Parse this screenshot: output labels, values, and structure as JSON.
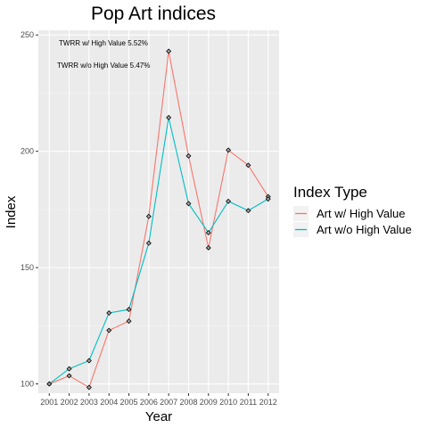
{
  "chart_data": {
    "type": "line",
    "title": "Pop Art indices",
    "xlabel": "Year",
    "ylabel": "Index",
    "x": [
      2001,
      2002,
      2003,
      2004,
      2005,
      2006,
      2007,
      2008,
      2009,
      2010,
      2011,
      2012
    ],
    "x_ticks": [
      "2001",
      "2002",
      "2003",
      "2004",
      "2005",
      "2006",
      "2007",
      "2008",
      "2009",
      "2010",
      "2011",
      "2012"
    ],
    "ylim": [
      96,
      252
    ],
    "y_ticks": [
      100,
      150,
      200,
      250
    ],
    "y_tick_labels": [
      "100",
      "150",
      "200",
      "250"
    ],
    "grid": true,
    "legend": {
      "title": "Index Type",
      "position": "right"
    },
    "annotations": [
      "TWRR w/ High Value 5.52%",
      "TWRR w/o High Value 5.47%"
    ],
    "series": [
      {
        "name": "Art w/ High Value",
        "color": "#F8766D",
        "values": [
          100,
          103.5,
          98.5,
          123,
          127,
          172,
          243,
          198,
          158.5,
          200.5,
          194,
          180.5
        ]
      },
      {
        "name": "Art w/o High Value",
        "color": "#00BFC4",
        "values": [
          100,
          106.5,
          110,
          130.5,
          132,
          160.5,
          214.5,
          177.5,
          165,
          178.5,
          174.5,
          179.5
        ]
      }
    ]
  }
}
